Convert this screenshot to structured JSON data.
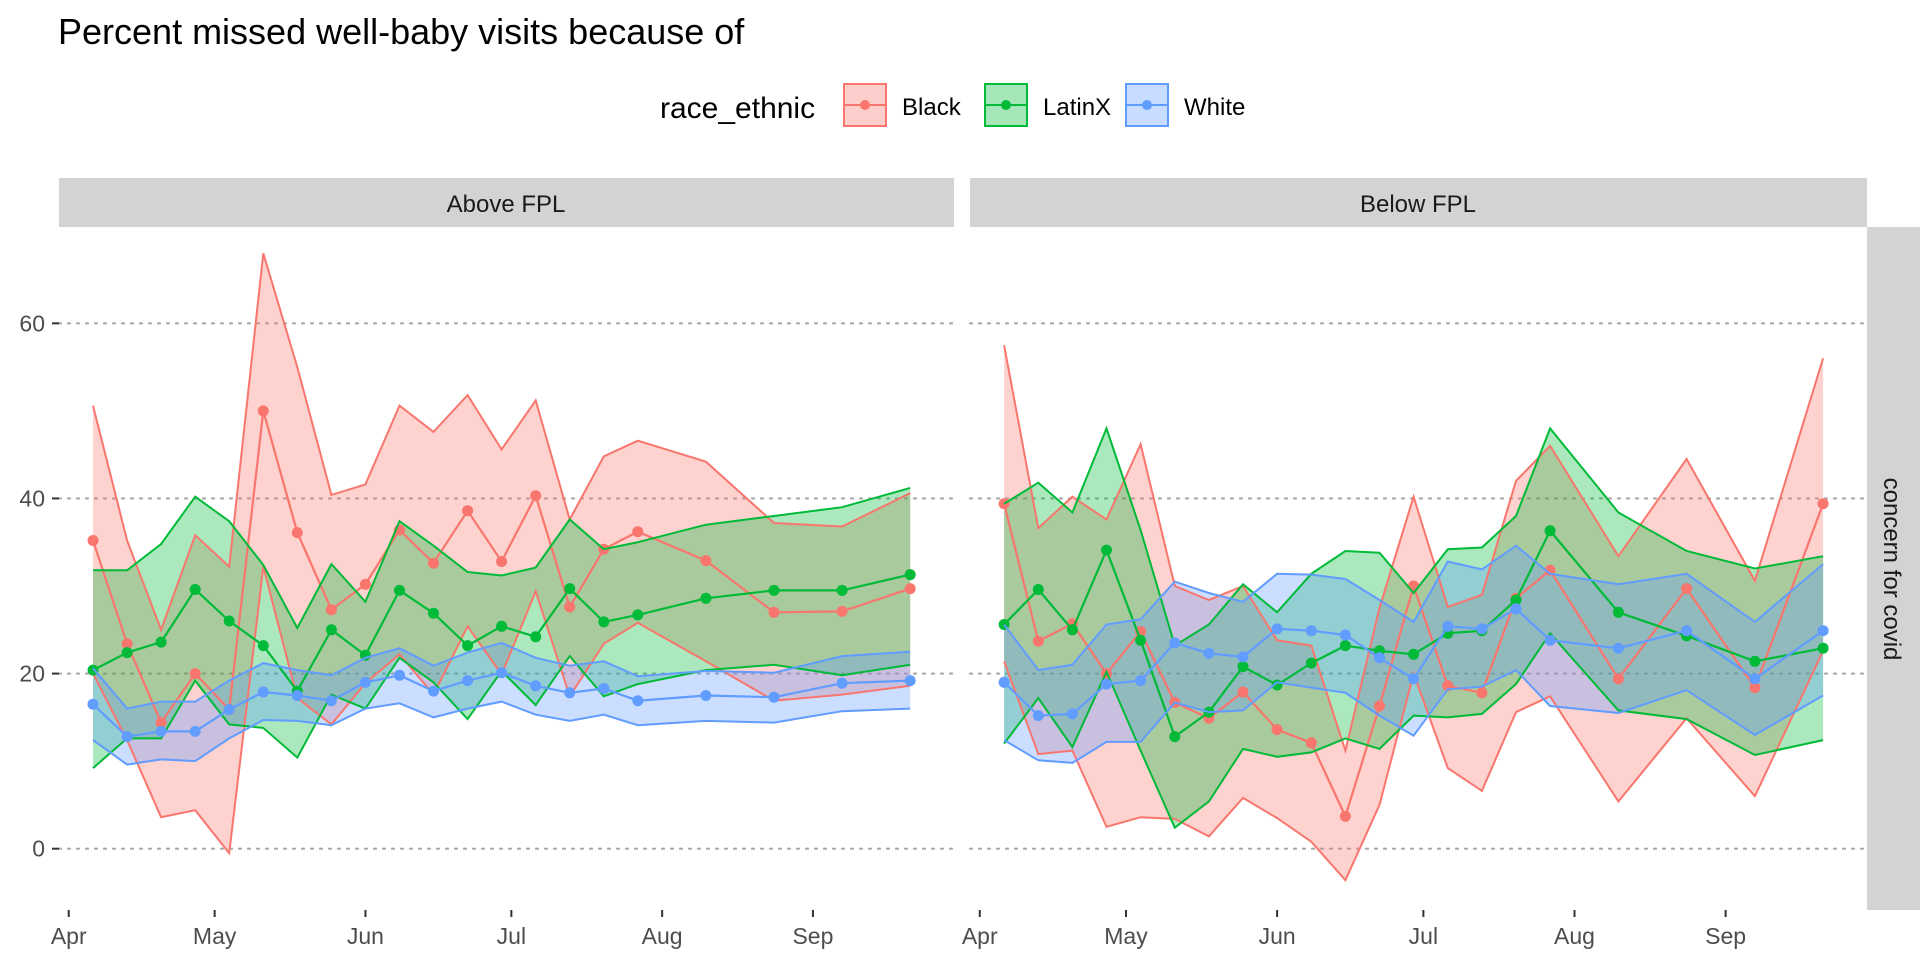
{
  "title": "Percent missed well-baby visits because of",
  "legend": {
    "title": "race_ethnic",
    "items": [
      {
        "label": "Black",
        "color": "#F8766D"
      },
      {
        "label": "LatinX",
        "color": "#00BA38"
      },
      {
        "label": "White",
        "color": "#619CFF"
      }
    ]
  },
  "row_strip": "concern for covid",
  "x_ticks": [
    "Apr",
    "May",
    "Jun",
    "Jul",
    "Aug",
    "Sep"
  ],
  "y_ticks": [
    "0",
    "20",
    "40",
    "60"
  ],
  "chart_data": {
    "type": "line",
    "title": "Percent missed well-baby visits because of",
    "xlabel": "",
    "ylabel": "",
    "x_axis": "date (2020)",
    "xlim": [
      "2020-03-30",
      "2020-09-30"
    ],
    "ylim": [
      -7,
      71
    ],
    "grid": "horizontal dotted major gridlines",
    "legend_position": "top",
    "x_dates": [
      "2020-04-06",
      "2020-04-13",
      "2020-04-20",
      "2020-04-27",
      "2020-05-04",
      "2020-05-11",
      "2020-05-18",
      "2020-05-25",
      "2020-06-01",
      "2020-06-08",
      "2020-06-15",
      "2020-06-22",
      "2020-06-29",
      "2020-07-06",
      "2020-07-13",
      "2020-07-20",
      "2020-07-27",
      "2020-08-10",
      "2020-08-24",
      "2020-09-07",
      "2020-09-21"
    ],
    "panels": [
      {
        "label": "Above FPL",
        "series": [
          {
            "name": "Black",
            "values": [
              35.2,
              23.4,
              14.4,
              20.0,
              15.9,
              50.0,
              36.1,
              27.3,
              30.2,
              36.4,
              32.6,
              38.6,
              32.8,
              40.3,
              27.6,
              34.2,
              36.2,
              32.9,
              27.0,
              27.1,
              29.7
            ],
            "lower": [
              20.0,
              12.4,
              3.6,
              4.4,
              -0.5,
              32.2,
              17.2,
              14.2,
              18.9,
              22.2,
              17.6,
              25.4,
              19.9,
              29.4,
              17.4,
              23.4,
              25.8,
              21.4,
              16.9,
              17.6,
              18.6
            ],
            "upper": [
              50.6,
              35.2,
              25.0,
              35.8,
              32.2,
              68.0,
              55.0,
              40.4,
              41.6,
              50.6,
              47.6,
              51.8,
              45.6,
              51.2,
              37.6,
              44.8,
              46.6,
              44.2,
              37.2,
              36.8,
              40.6
            ]
          },
          {
            "name": "LatinX",
            "values": [
              20.4,
              22.4,
              23.6,
              29.6,
              26.0,
              23.2,
              18.0,
              25.0,
              22.1,
              29.5,
              26.9,
              23.2,
              25.4,
              24.2,
              29.7,
              25.9,
              26.7,
              28.6,
              29.5,
              29.5,
              31.3
            ],
            "lower": [
              9.2,
              12.6,
              12.6,
              19.2,
              14.2,
              13.8,
              10.4,
              17.6,
              16.0,
              21.8,
              19.0,
              14.8,
              20.3,
              16.4,
              22.0,
              17.4,
              18.8,
              20.4,
              21.0,
              19.8,
              21.0
            ],
            "upper": [
              31.8,
              31.8,
              34.8,
              40.2,
              37.4,
              32.4,
              25.2,
              32.5,
              28.2,
              37.4,
              34.6,
              31.6,
              31.2,
              32.1,
              37.6,
              34.2,
              35.0,
              37.0,
              38.0,
              39.0,
              41.2
            ]
          },
          {
            "name": "White",
            "values": [
              16.5,
              12.8,
              13.4,
              13.4,
              15.9,
              17.9,
              17.5,
              16.9,
              19.0,
              19.8,
              18.0,
              19.2,
              20.1,
              18.6,
              17.8,
              18.3,
              16.9,
              17.5,
              17.3,
              18.9,
              19.2
            ],
            "lower": [
              12.4,
              9.6,
              10.2,
              10.0,
              12.6,
              14.7,
              14.6,
              14.1,
              16.0,
              16.6,
              15.0,
              16.0,
              16.8,
              15.3,
              14.6,
              15.3,
              14.1,
              14.6,
              14.4,
              15.7,
              16.0
            ],
            "upper": [
              20.6,
              16.0,
              16.8,
              16.8,
              19.2,
              21.2,
              20.4,
              19.8,
              21.8,
              22.9,
              20.9,
              22.4,
              23.5,
              21.8,
              20.9,
              21.4,
              19.7,
              20.3,
              20.1,
              22.0,
              22.5
            ]
          }
        ]
      },
      {
        "label": "Below FPL",
        "series": [
          {
            "name": "Black",
            "values": [
              39.4,
              23.7,
              25.7,
              20.0,
              24.8,
              16.7,
              14.9,
              17.9,
              13.6,
              12.1,
              3.7,
              16.3,
              30.0,
              18.6,
              17.8,
              28.6,
              31.8,
              19.4,
              29.7,
              18.4,
              39.4
            ],
            "lower": [
              21.4,
              10.8,
              11.2,
              2.5,
              3.6,
              3.4,
              1.4,
              5.8,
              3.5,
              0.8,
              -3.6,
              5.0,
              20.0,
              9.2,
              6.6,
              15.6,
              17.4,
              5.4,
              14.9,
              6.0,
              22.6
            ],
            "upper": [
              57.5,
              36.6,
              40.2,
              37.6,
              46.2,
              30.0,
              28.4,
              30.0,
              23.8,
              23.2,
              11.2,
              27.5,
              40.2,
              27.6,
              29.0,
              42.0,
              46.0,
              33.4,
              44.5,
              30.6,
              56.0
            ]
          },
          {
            "name": "LatinX",
            "values": [
              25.6,
              29.6,
              25.0,
              34.1,
              23.8,
              12.8,
              15.6,
              20.8,
              18.7,
              21.2,
              23.2,
              22.6,
              22.2,
              24.6,
              24.9,
              28.4,
              36.3,
              27.0,
              24.3,
              21.4,
              22.9
            ],
            "lower": [
              12.0,
              17.2,
              11.6,
              20.2,
              11.2,
              2.4,
              5.4,
              11.4,
              10.5,
              11.0,
              12.6,
              11.4,
              15.2,
              15.0,
              15.4,
              18.8,
              24.6,
              15.8,
              14.8,
              10.7,
              12.4
            ],
            "upper": [
              39.4,
              41.8,
              38.4,
              48.0,
              36.4,
              23.2,
              25.6,
              30.2,
              27.0,
              31.4,
              34.0,
              33.8,
              29.2,
              34.2,
              34.4,
              38.0,
              48.0,
              38.4,
              34.0,
              32.0,
              33.4
            ]
          },
          {
            "name": "White",
            "values": [
              19.0,
              15.2,
              15.4,
              18.8,
              19.2,
              23.5,
              22.3,
              21.9,
              25.1,
              24.9,
              24.4,
              21.8,
              19.4,
              25.4,
              25.1,
              27.4,
              23.8,
              22.9,
              24.9,
              19.4,
              24.9
            ],
            "lower": [
              12.4,
              10.1,
              9.8,
              12.2,
              12.2,
              16.7,
              15.6,
              15.8,
              19.0,
              18.4,
              17.8,
              15.2,
              12.9,
              18.2,
              18.5,
              20.4,
              16.3,
              15.5,
              18.1,
              13.0,
              17.5
            ],
            "upper": [
              25.6,
              20.4,
              21.0,
              25.6,
              26.2,
              30.5,
              29.2,
              28.2,
              31.4,
              31.3,
              30.8,
              28.4,
              25.9,
              32.8,
              31.9,
              34.6,
              31.4,
              30.2,
              31.4,
              25.9,
              32.5
            ]
          }
        ]
      }
    ]
  }
}
